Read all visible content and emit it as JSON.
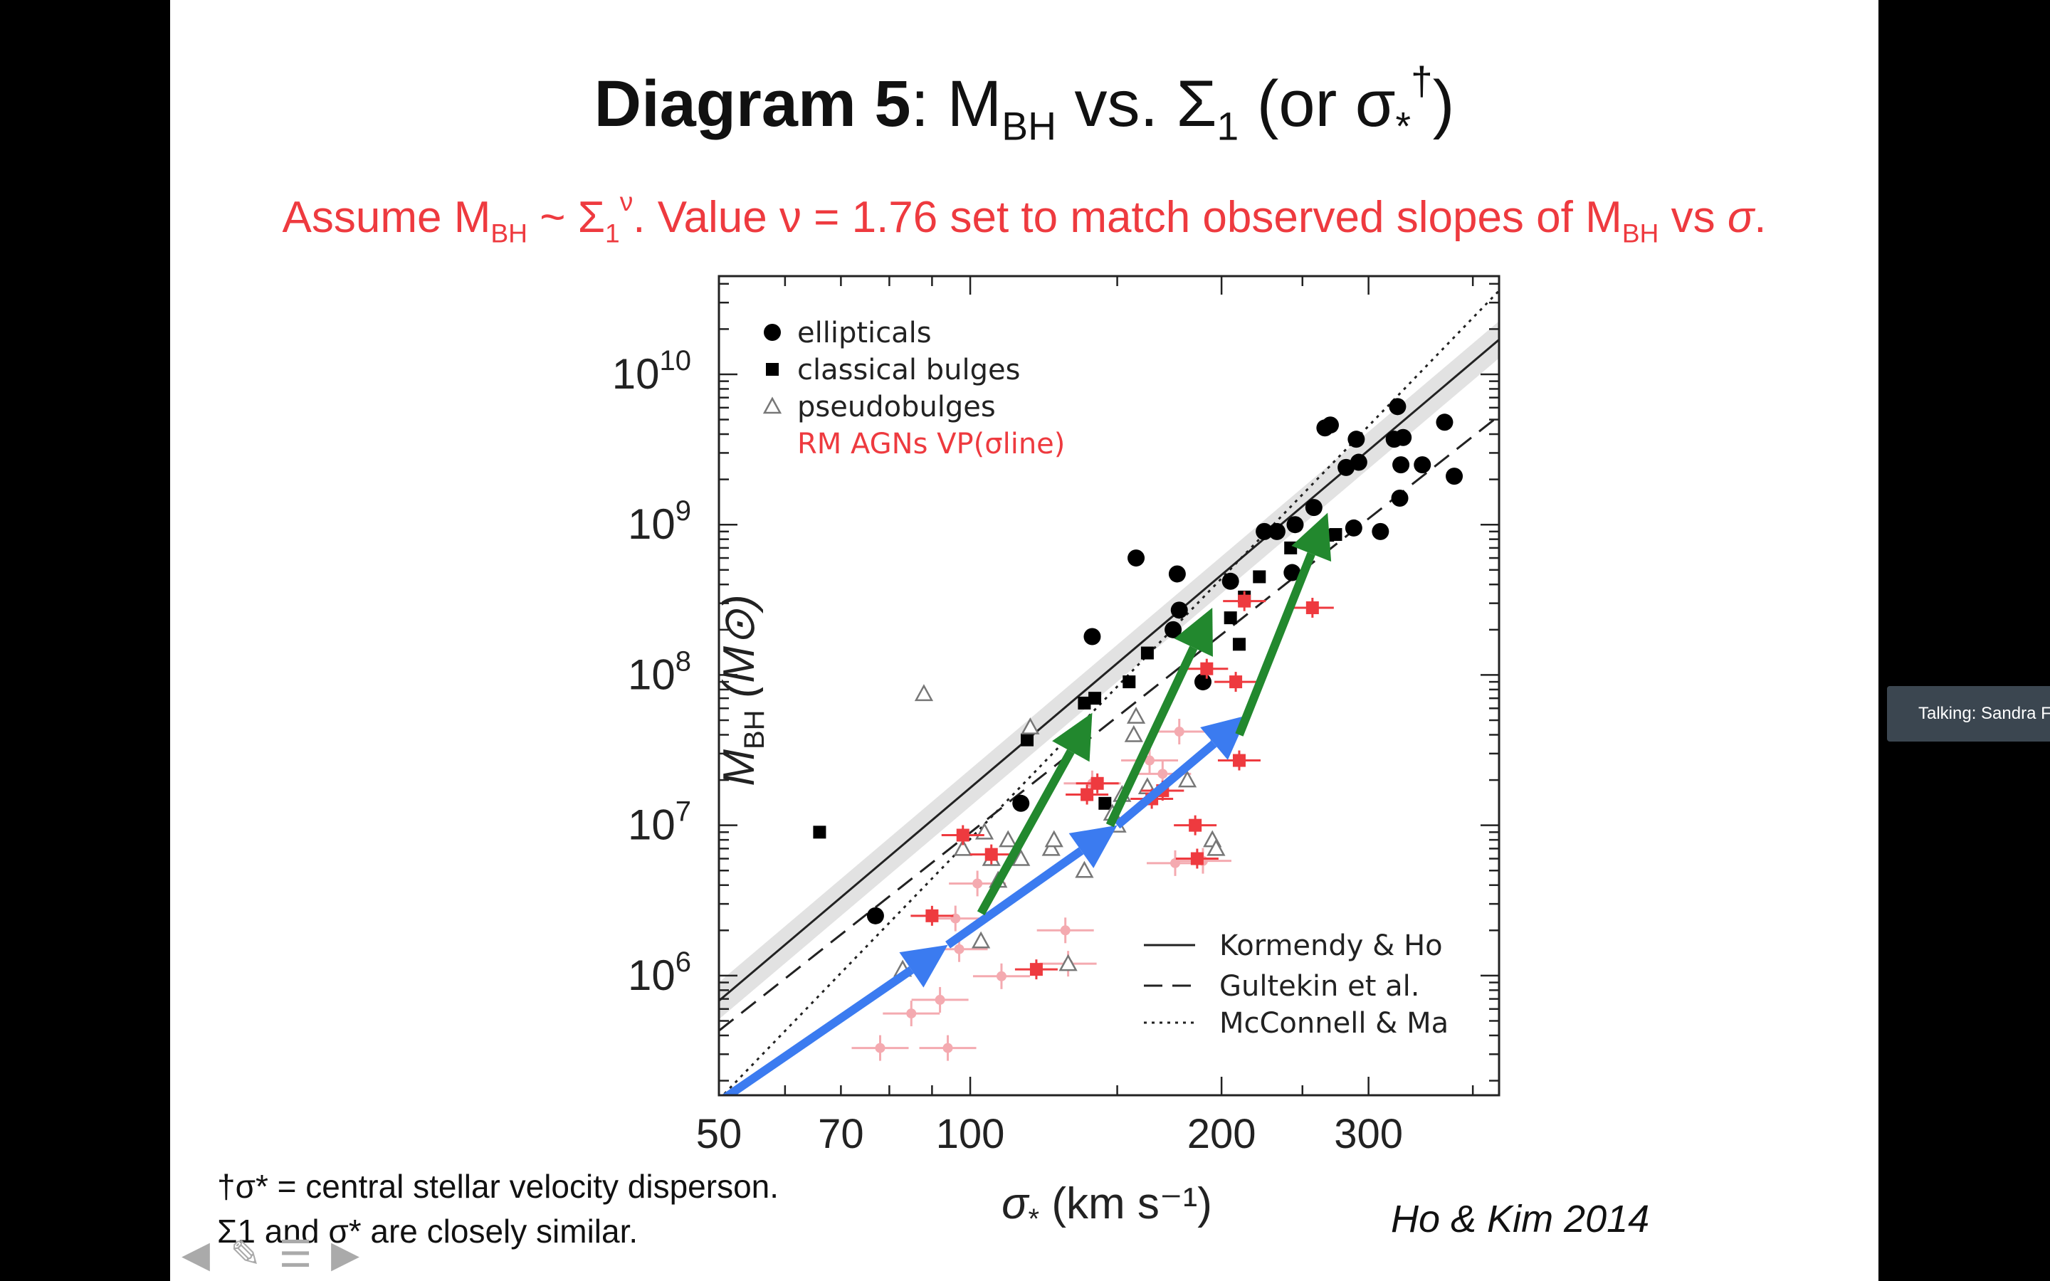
{
  "slide": {
    "title_bold": "Diagram 5",
    "title_rest": ": M",
    "title_sub": "BH",
    "title_vs": " vs. Σ",
    "title_sub2": "1",
    "title_paren": " (or σ",
    "title_star": "*",
    "title_dagger": "†",
    "title_close": ")",
    "subtitle_a": "Assume M",
    "subtitle_sub": "BH",
    "subtitle_b": " ~ Σ",
    "subtitle_sub2": "1",
    "subtitle_sup": "ν",
    "subtitle_c": ".  Value ν = 1.76 set to match observed slopes of M",
    "subtitle_sub3": "BH",
    "subtitle_d": " vs ",
    "subtitle_sigma": "σ",
    "subtitle_e": ".",
    "note1": "†σ* = central stellar velocity disperson.",
    "note2": "Σ1 and σ* are closely similar.",
    "citation": "Ho & Kim 2014"
  },
  "talking_label": "Talking: Sandra F",
  "chart_data": {
    "type": "scatter",
    "xscale": "log",
    "yscale": "log",
    "xlim": [
      50,
      430
    ],
    "ylim": [
      160000,
      45000000000
    ],
    "xticks": [
      "50",
      "70",
      "100",
      "200",
      "300"
    ],
    "yticks": [
      "10^6",
      "10^7",
      "10^8",
      "10^9",
      "10^10"
    ],
    "xlabel": "σ* (km s⁻¹)",
    "ylabel": "MBH (M⊙)",
    "legend_points": [
      "ellipticals",
      "classical bulges",
      "pseudobulges",
      "RM AGNs VP(σline)"
    ],
    "legend_lines": [
      "Kormendy & Ho",
      "Gultekin et al.",
      "McConnell & Ma"
    ],
    "legend_position": "top-left (points), bottom-right (lines)",
    "series": [
      {
        "name": "ellipticals",
        "color": "#000000",
        "points": [
          [
            77,
            2500000.0
          ],
          [
            115,
            14000000.0
          ],
          [
            140,
            180000000.0
          ],
          [
            158,
            600000000.0
          ],
          [
            175,
            200000000.0
          ],
          [
            178,
            270000000.0
          ],
          [
            177,
            470000000.0
          ],
          [
            190,
            90000000.0
          ],
          [
            205,
            420000000.0
          ],
          [
            225,
            900000000.0
          ],
          [
            233,
            900000000.0
          ],
          [
            245,
            1000000000.0
          ],
          [
            243,
            480000000.0
          ],
          [
            258,
            1300000000.0
          ],
          [
            266,
            4400000000.0
          ],
          [
            270,
            4600000000.0
          ],
          [
            282,
            2400000000.0
          ],
          [
            290,
            3700000000.0
          ],
          [
            292,
            2600000000.0
          ],
          [
            288,
            950000000.0
          ],
          [
            310,
            900000000.0
          ],
          [
            322,
            3700000000.0
          ],
          [
            325,
            6100000000.0
          ],
          [
            328,
            2500000000.0
          ],
          [
            327,
            1500000000.0
          ],
          [
            330,
            3800000000.0
          ],
          [
            348,
            2500000000.0
          ],
          [
            370,
            4800000000.0
          ],
          [
            380,
            2100000000.0
          ]
        ]
      },
      {
        "name": "classical bulges",
        "color": "#000000",
        "points": [
          [
            66,
            9000000.0
          ],
          [
            117,
            37000000.0
          ],
          [
            137,
            65000000.0
          ],
          [
            141,
            70000000.0
          ],
          [
            155,
            90000000.0
          ],
          [
            163,
            140000000.0
          ],
          [
            205,
            240000000.0
          ],
          [
            210,
            160000000.0
          ],
          [
            213,
            330000000.0
          ],
          [
            222,
            450000000.0
          ],
          [
            242,
            700000000.0
          ],
          [
            268,
            850000000.0
          ],
          [
            274,
            860000000.0
          ],
          [
            204,
            40000000.0
          ],
          [
            145,
            14000000.0
          ]
        ]
      },
      {
        "name": "pseudobulges",
        "color": "#777777",
        "points": [
          [
            88,
            75000000.0
          ],
          [
            83,
            1100000.0
          ],
          [
            98,
            7000000.0
          ],
          [
            103,
            1700000.0
          ],
          [
            104,
            9000000.0
          ],
          [
            106,
            6000000.0
          ],
          [
            108,
            4300000.0
          ],
          [
            111,
            8000000.0
          ],
          [
            115,
            6000000.0
          ],
          [
            118,
            45000000.0
          ],
          [
            125,
            7000000.0
          ],
          [
            126,
            8000000.0
          ],
          [
            131,
            1200000.0
          ],
          [
            137,
            5000000.0
          ],
          [
            148,
            12000000.0
          ],
          [
            150,
            10000000.0
          ],
          [
            152,
            16000000.0
          ],
          [
            157,
            40000000.0
          ],
          [
            158,
            53000000.0
          ],
          [
            163,
            18000000.0
          ],
          [
            182,
            20000000.0
          ],
          [
            195,
            8000000.0
          ],
          [
            197,
            7000000.0
          ],
          [
            199,
            41000000.0
          ]
        ]
      },
      {
        "name": "RM AGNs VP(σline)",
        "color": "#ee3a3f",
        "points": [
          [
            90,
            2500000.0
          ],
          [
            98,
            8600000.0
          ],
          [
            106,
            6400000.0
          ],
          [
            120,
            1100000.0
          ],
          [
            138,
            16000000.0
          ],
          [
            142,
            19000000.0
          ],
          [
            165,
            15000000.0
          ],
          [
            187,
            6000000.0
          ],
          [
            192,
            110000000.0
          ],
          [
            210,
            27000000.0
          ],
          [
            208,
            90000000.0
          ],
          [
            213,
            310000000.0
          ],
          [
            257,
            280000000.0
          ],
          [
            186,
            10000000.0
          ],
          [
            170,
            17000000.0
          ]
        ]
      },
      {
        "name": "RM AGNs (faint)",
        "color": "#f4aab0",
        "points": [
          [
            78,
            330000.0
          ],
          [
            85,
            560000.0
          ],
          [
            92,
            690000.0
          ],
          [
            94,
            330000.0
          ],
          [
            96,
            2400000.0
          ],
          [
            97,
            1500000.0
          ],
          [
            102,
            4100000.0
          ],
          [
            109,
            990000.0
          ],
          [
            130,
            2000000.0
          ],
          [
            131,
            1200000.0
          ],
          [
            140,
            19000000.0
          ],
          [
            164,
            27000000.0
          ],
          [
            170,
            22000000.0
          ],
          [
            176,
            5600000.0
          ],
          [
            178,
            42000000.0
          ],
          [
            190,
            5800000.0
          ]
        ]
      }
    ],
    "fit_lines": [
      {
        "name": "Kormendy & Ho",
        "style": "solid",
        "x": [
          50,
          430
        ],
        "y": [
          680000,
          17000000000
        ]
      },
      {
        "name": "Gultekin et al.",
        "style": "dashed",
        "x": [
          50,
          430
        ],
        "y": [
          430000,
          5300000000
        ]
      },
      {
        "name": "McConnell & Ma",
        "style": "dotted",
        "x": [
          50,
          430
        ],
        "y": [
          150000,
          36000000000
        ]
      }
    ],
    "arrows": [
      {
        "color": "#3b7bf0",
        "from": [
          50.5,
          150000
        ],
        "to": [
          94,
          1600000.0
        ]
      },
      {
        "color": "#3b7bf0",
        "from": [
          94,
          1600000.0
        ],
        "to": [
          150,
          10000000.0
        ]
      },
      {
        "color": "#3b7bf0",
        "from": [
          150,
          10000000.0
        ],
        "to": [
          215,
          54000000.0
        ]
      },
      {
        "color": "#22882e",
        "from": [
          103,
          2600000.0
        ],
        "to": [
          140,
          56000000.0
        ]
      },
      {
        "color": "#22882e",
        "from": [
          147,
          10000000.0
        ],
        "to": [
          195,
          280000000.0
        ]
      },
      {
        "color": "#22882e",
        "from": [
          210,
          40000000.0
        ],
        "to": [
          268,
          1200000000.0
        ]
      }
    ]
  }
}
